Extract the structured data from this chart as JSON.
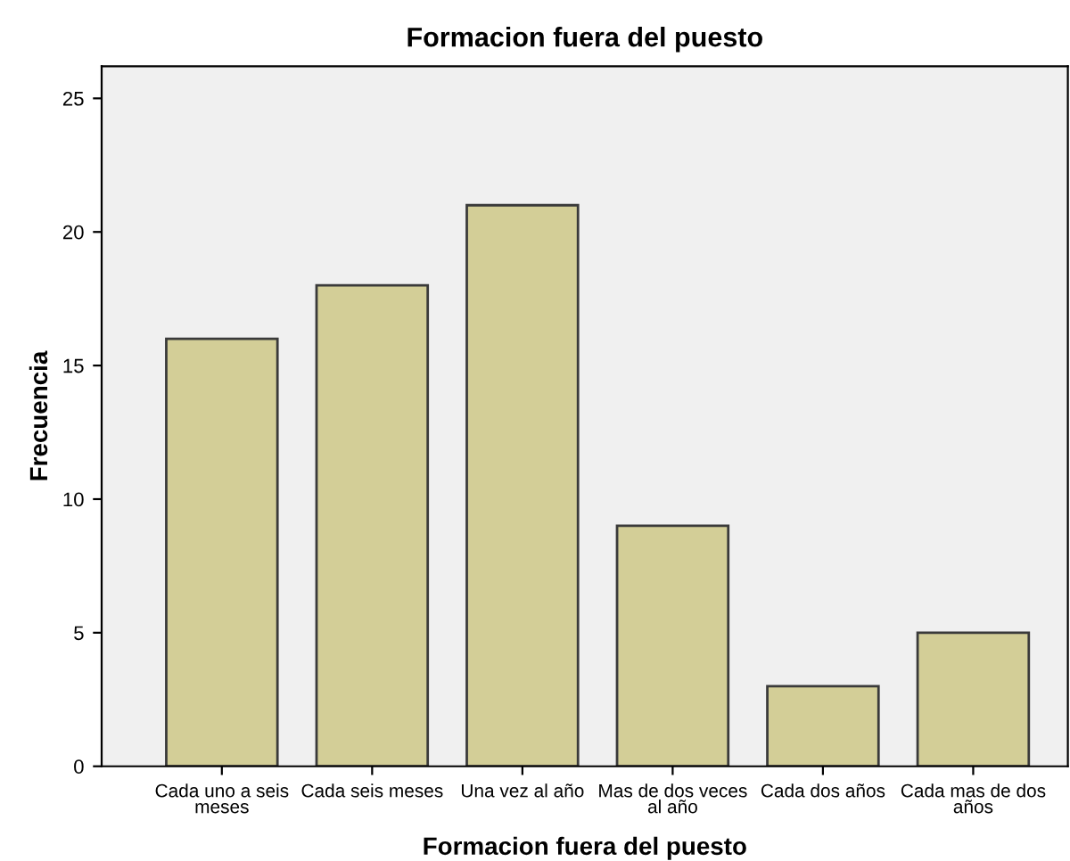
{
  "chart_data": {
    "type": "bar",
    "title": "Formacion fuera del puesto",
    "xlabel": "Formacion fuera del puesto",
    "ylabel": "Frecuencia",
    "categories": [
      "Cada uno a seis meses",
      "Cada seis meses",
      "Una vez al año",
      "Mas de dos veces al año",
      "Cada dos años",
      "Cada mas de dos años"
    ],
    "values": [
      16,
      18,
      21,
      9,
      3,
      5
    ],
    "color": "#d3ce97",
    "ylim": [
      0,
      26.2
    ],
    "yticks": [
      0,
      5,
      10,
      15,
      20,
      25
    ],
    "grid": false
  }
}
